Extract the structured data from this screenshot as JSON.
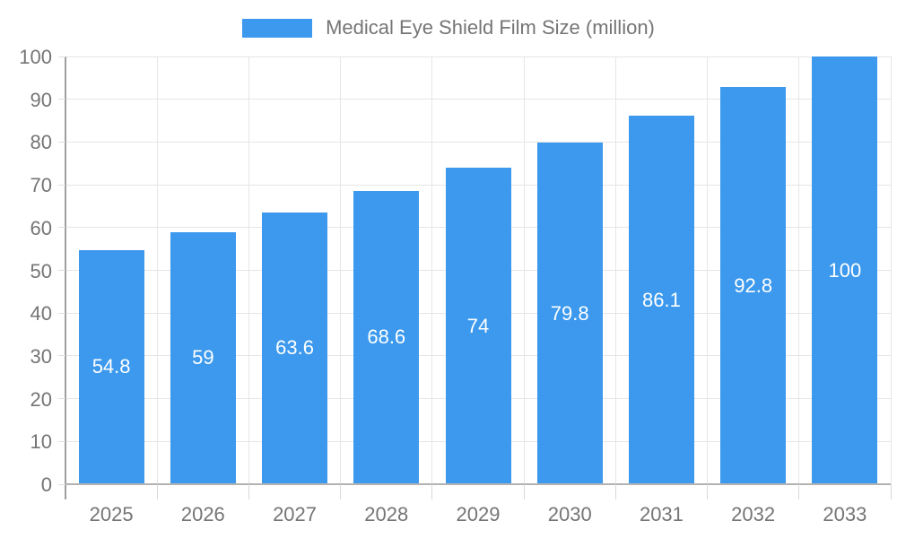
{
  "legend": {
    "items": [
      {
        "label": "Medical Eye Shield Film Size (million)",
        "color": "#3c99ed"
      }
    ]
  },
  "chart_data": {
    "type": "bar",
    "title": "Medical Eye Shield Film Size (million)",
    "series_name": "Medical Eye Shield Film Size (million)",
    "categories": [
      "2025",
      "2026",
      "2027",
      "2028",
      "2029",
      "2030",
      "2031",
      "2032",
      "2033"
    ],
    "values": [
      54.8,
      59,
      63.6,
      68.6,
      74,
      79.8,
      86.1,
      92.8,
      100
    ],
    "bar_value_labels": [
      "54.8",
      "59",
      "63.6",
      "68.6",
      "74",
      "79.8",
      "86.1",
      "92.8",
      "100"
    ],
    "xlabel": "",
    "ylabel": "",
    "ylim": [
      0,
      100
    ],
    "ytick_step": 10,
    "ytick_labels": [
      "0",
      "10",
      "20",
      "30",
      "40",
      "50",
      "60",
      "70",
      "80",
      "90",
      "100"
    ],
    "grid": true,
    "legend_position": "top",
    "bar_label_position": "inside-center",
    "colors": {
      "bar": "#3c99ed",
      "bar_label_text": "#ffffff",
      "axis_text": "#757575",
      "gridline": "#e6e6e6",
      "axis_line": "#9e9e9e",
      "baseline": "#b3b3b3",
      "minor_tick": "#d9d9d9"
    }
  }
}
